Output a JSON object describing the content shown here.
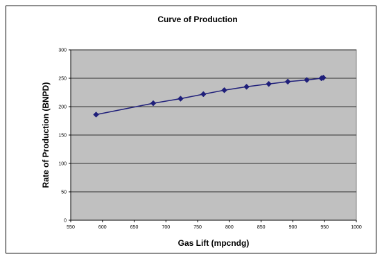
{
  "chart_data": {
    "type": "scatter",
    "title": "Curve of Production",
    "xlabel": "Gas Lift (mpcndg)",
    "ylabel": "Rate of Production (BNPD)",
    "xlim": [
      550,
      1000
    ],
    "ylim": [
      0,
      300
    ],
    "x_ticks": [
      550,
      600,
      650,
      700,
      750,
      800,
      850,
      900,
      950,
      1000
    ],
    "y_ticks": [
      0,
      50,
      100,
      150,
      200,
      250,
      300
    ],
    "grid": "horizontal",
    "plot_background": "#c0c0c0",
    "series": [
      {
        "color": "#1f1f7a",
        "marker": "diamond",
        "x": [
          590,
          680,
          723,
          759,
          792,
          827,
          862,
          892,
          922,
          945,
          948
        ],
        "y": [
          186,
          206,
          214,
          222,
          229,
          235,
          240,
          244,
          247,
          250,
          251
        ]
      }
    ]
  }
}
